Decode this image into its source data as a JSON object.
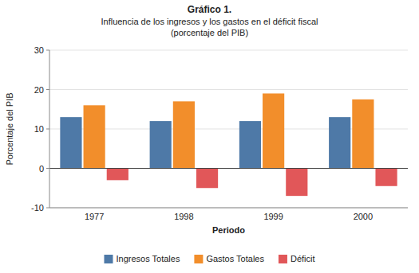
{
  "chart_data": {
    "type": "bar",
    "title": "Gráfico 1.",
    "subtitle": [
      "Influencia de los ingresos y los gastos en el déficit fiscal",
      "(porcentaje del PIB)"
    ],
    "categories": [
      "1977",
      "1998",
      "1999",
      "2000"
    ],
    "series": [
      {
        "name": "Ingresos Totales",
        "values": [
          13.0,
          12.0,
          12.0,
          13.0
        ]
      },
      {
        "name": "Gastos Totales",
        "values": [
          16.0,
          17.0,
          19.0,
          17.5
        ]
      },
      {
        "name": "Déficit",
        "values": [
          -3.0,
          -5.0,
          -7.0,
          -4.5
        ]
      }
    ],
    "xlabel": "Periodo",
    "ylabel": "Porcentaje del PIB",
    "ylim": [
      -10,
      30
    ],
    "yticks": [
      -10,
      0,
      10,
      20,
      30
    ],
    "grid": true,
    "legend": "bottom"
  }
}
